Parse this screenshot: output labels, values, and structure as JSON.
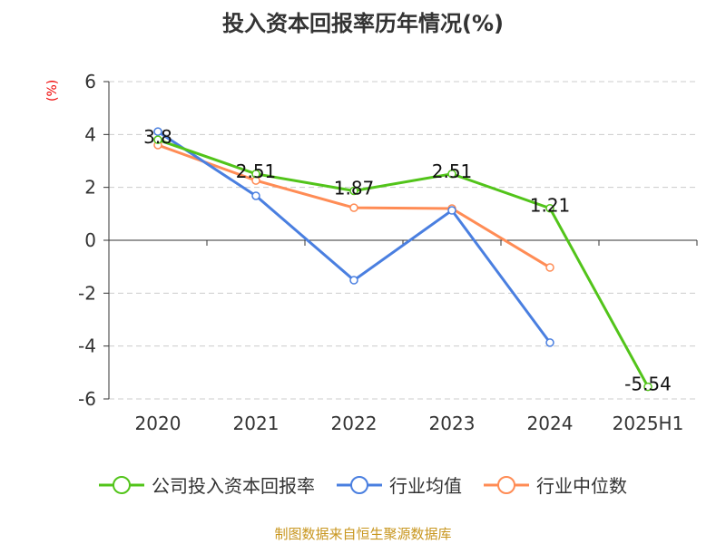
{
  "title": "投入资本回报率历年情况(%)",
  "footer": "制图数据来自恒生聚源数据库",
  "chart_data": {
    "type": "line",
    "title": "投入资本回报率历年情况(%)",
    "ylabel": "(%)",
    "categories": [
      "2020",
      "2021",
      "2022",
      "2023",
      "2024",
      "2025H1"
    ],
    "ylim": [
      -6,
      6
    ],
    "yticks": [
      -6,
      -4,
      -2,
      0,
      2,
      4,
      6
    ],
    "grid": true,
    "legend_position": "bottom",
    "series": [
      {
        "name": "公司投入资本回报率",
        "color": "#52c41a",
        "values": [
          3.8,
          2.51,
          1.87,
          2.51,
          1.21,
          -5.54
        ],
        "labels": [
          "3.8",
          "2.51",
          "1.87",
          "2.51",
          "1.21",
          "-5.54"
        ]
      },
      {
        "name": "行业均值",
        "color": "#4a7fe0",
        "values": [
          4.11,
          1.68,
          -1.51,
          1.13,
          -3.87,
          null
        ]
      },
      {
        "name": "行业中位数",
        "color": "#ff8c55",
        "values": [
          3.6,
          2.26,
          1.23,
          1.2,
          -1.03,
          null
        ]
      }
    ]
  }
}
